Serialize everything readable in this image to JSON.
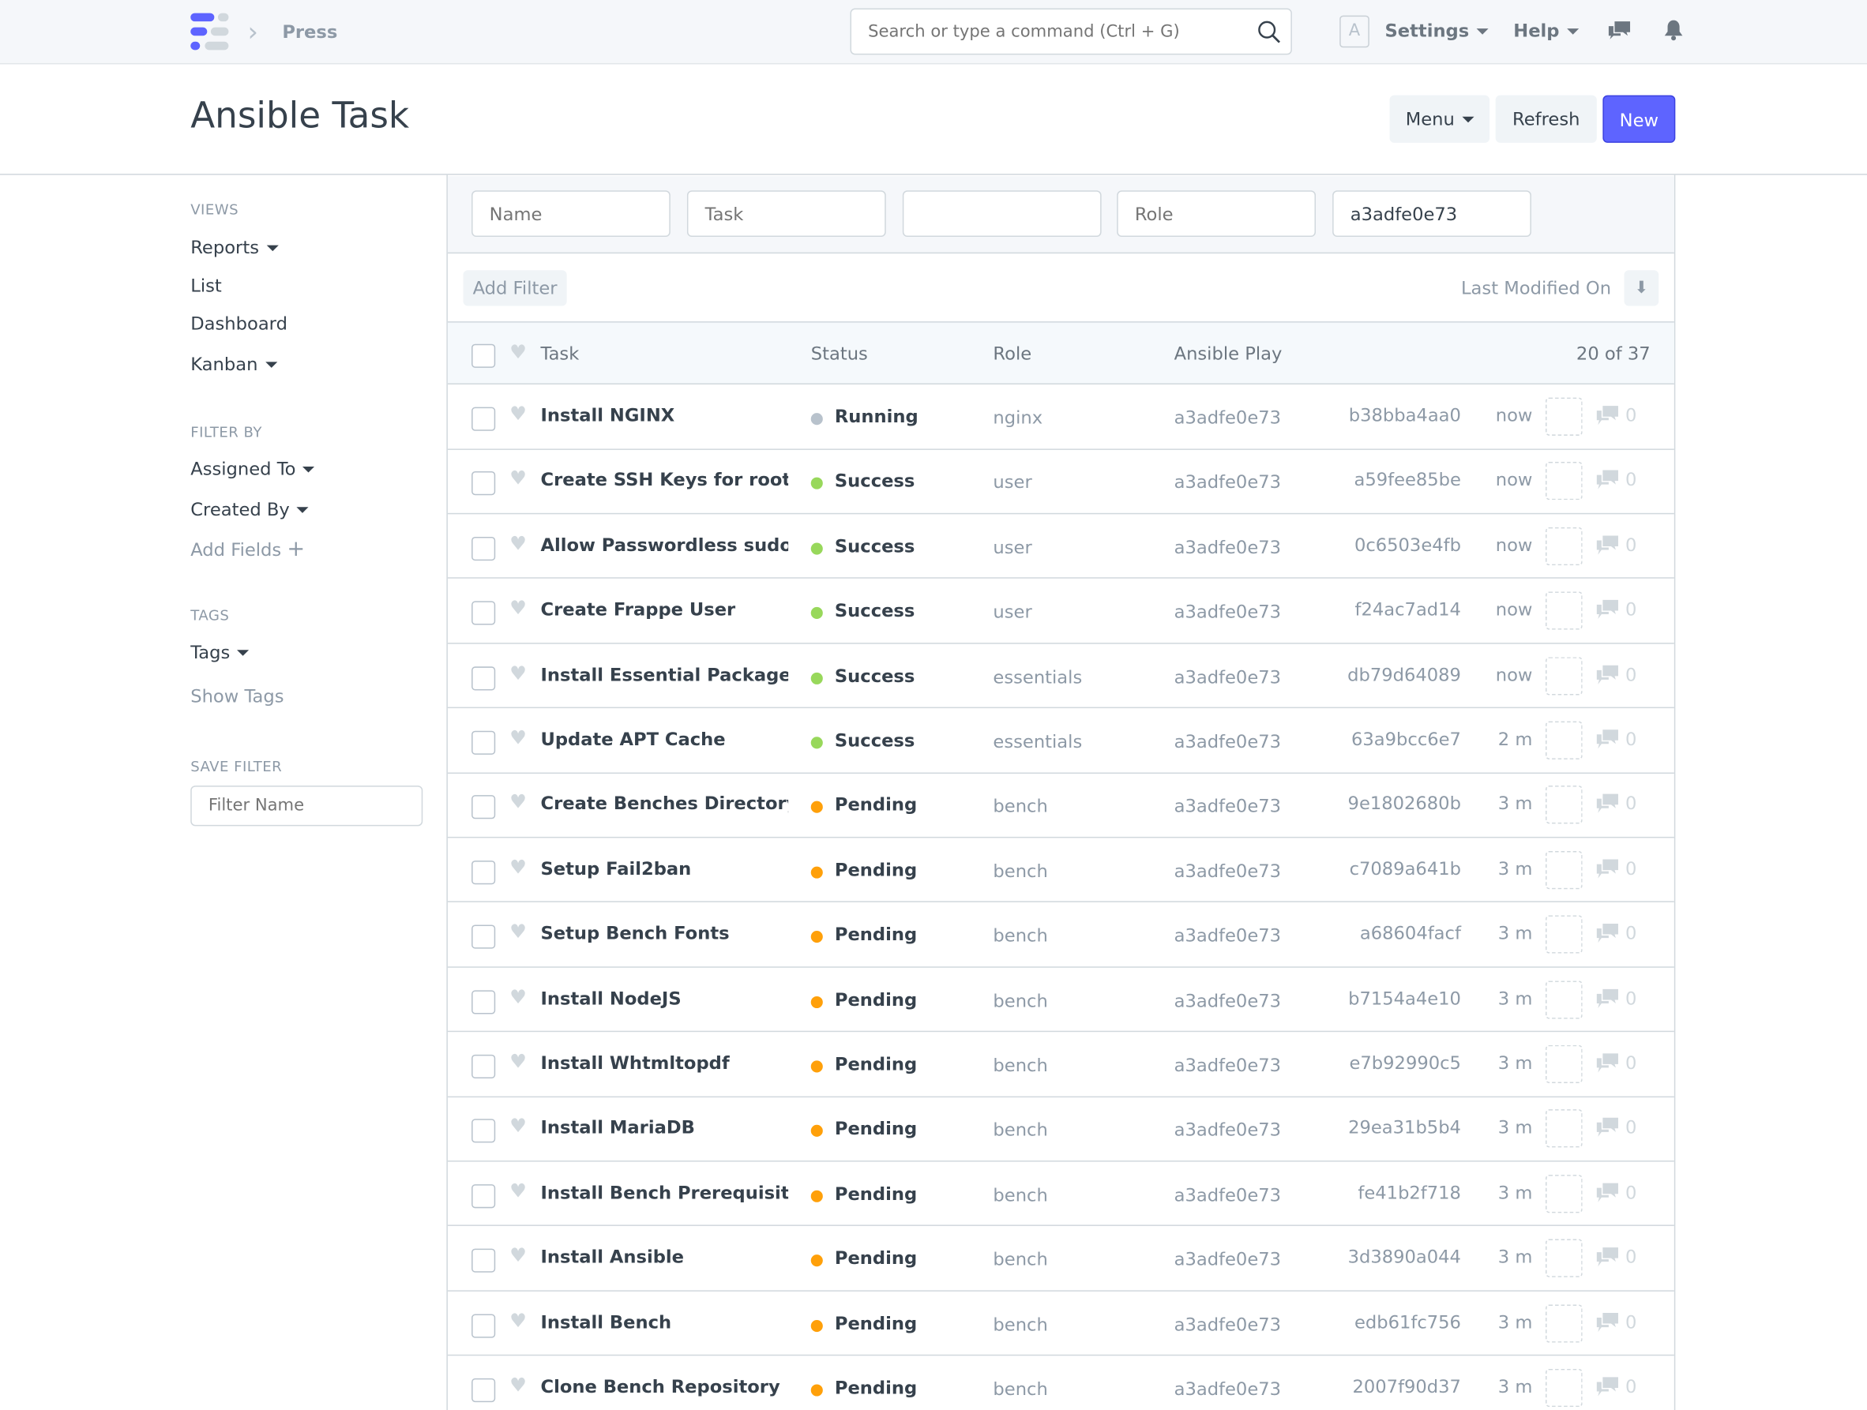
{
  "navbar": {
    "breadcrumb": "Press",
    "search_placeholder": "Search or type a command (Ctrl + G)",
    "avatar_letter": "A",
    "settings": "Settings",
    "help": "Help"
  },
  "page": {
    "title": "Ansible Task",
    "menu": "Menu",
    "refresh": "Refresh",
    "new": "New"
  },
  "colors": {
    "primary": "#5e64ff",
    "success": "#98d85b",
    "pending": "#ffa00a",
    "running": "#b8c2cc"
  },
  "sidebar": {
    "views_heading": "VIEWS",
    "views": [
      "Reports",
      "List",
      "Dashboard",
      "Kanban"
    ],
    "filter_heading": "FILTER BY",
    "assigned_to": "Assigned To",
    "created_by": "Created By",
    "add_fields": "Add Fields",
    "tags_heading": "TAGS",
    "tags": "Tags",
    "show_tags": "Show Tags",
    "save_filter_heading": "SAVE FILTER",
    "filter_name_placeholder": "Filter Name"
  },
  "filters": {
    "name_placeholder": "Name",
    "task_placeholder": "Task",
    "blank_placeholder": "",
    "role_placeholder": "Role",
    "play_value": "a3adfe0e73",
    "add_filter": "Add Filter",
    "sort_label": "Last Modified On"
  },
  "table": {
    "headers": {
      "task": "Task",
      "status": "Status",
      "role": "Role",
      "play": "Ansible Play",
      "count": "20 of 37"
    },
    "rows": [
      {
        "task": "Install NGINX",
        "status": "Running",
        "role": "nginx",
        "play": "a3adfe0e73",
        "name": "b38bba4aa0",
        "modified": "now",
        "comments": "0"
      },
      {
        "task": "Create SSH Keys for root User",
        "status": "Success",
        "role": "user",
        "play": "a3adfe0e73",
        "name": "a59fee85be",
        "modified": "now",
        "comments": "0"
      },
      {
        "task": "Allow Passwordless sudo Access",
        "status": "Success",
        "role": "user",
        "play": "a3adfe0e73",
        "name": "0c6503e4fb",
        "modified": "now",
        "comments": "0"
      },
      {
        "task": "Create Frappe User",
        "status": "Success",
        "role": "user",
        "play": "a3adfe0e73",
        "name": "f24ac7ad14",
        "modified": "now",
        "comments": "0"
      },
      {
        "task": "Install Essential Packages",
        "status": "Success",
        "role": "essentials",
        "play": "a3adfe0e73",
        "name": "db79d64089",
        "modified": "now",
        "comments": "0"
      },
      {
        "task": "Update APT Cache",
        "status": "Success",
        "role": "essentials",
        "play": "a3adfe0e73",
        "name": "63a9bcc6e7",
        "modified": "2 m",
        "comments": "0"
      },
      {
        "task": "Create Benches Directory",
        "status": "Pending",
        "role": "bench",
        "play": "a3adfe0e73",
        "name": "9e1802680b",
        "modified": "3 m",
        "comments": "0"
      },
      {
        "task": "Setup Fail2ban",
        "status": "Pending",
        "role": "bench",
        "play": "a3adfe0e73",
        "name": "c7089a641b",
        "modified": "3 m",
        "comments": "0"
      },
      {
        "task": "Setup Bench Fonts",
        "status": "Pending",
        "role": "bench",
        "play": "a3adfe0e73",
        "name": "a68604facf",
        "modified": "3 m",
        "comments": "0"
      },
      {
        "task": "Install NodeJS",
        "status": "Pending",
        "role": "bench",
        "play": "a3adfe0e73",
        "name": "b7154a4e10",
        "modified": "3 m",
        "comments": "0"
      },
      {
        "task": "Install Whtmltopdf",
        "status": "Pending",
        "role": "bench",
        "play": "a3adfe0e73",
        "name": "e7b92990c5",
        "modified": "3 m",
        "comments": "0"
      },
      {
        "task": "Install MariaDB",
        "status": "Pending",
        "role": "bench",
        "play": "a3adfe0e73",
        "name": "29ea31b5b4",
        "modified": "3 m",
        "comments": "0"
      },
      {
        "task": "Install Bench Prerequisites",
        "status": "Pending",
        "role": "bench",
        "play": "a3adfe0e73",
        "name": "fe41b2f718",
        "modified": "3 m",
        "comments": "0"
      },
      {
        "task": "Install Ansible",
        "status": "Pending",
        "role": "bench",
        "play": "a3adfe0e73",
        "name": "3d3890a044",
        "modified": "3 m",
        "comments": "0"
      },
      {
        "task": "Install Bench",
        "status": "Pending",
        "role": "bench",
        "play": "a3adfe0e73",
        "name": "edb61fc756",
        "modified": "3 m",
        "comments": "0"
      },
      {
        "task": "Clone Bench Repository",
        "status": "Pending",
        "role": "bench",
        "play": "a3adfe0e73",
        "name": "2007f90d37",
        "modified": "3 m",
        "comments": "0"
      }
    ]
  }
}
